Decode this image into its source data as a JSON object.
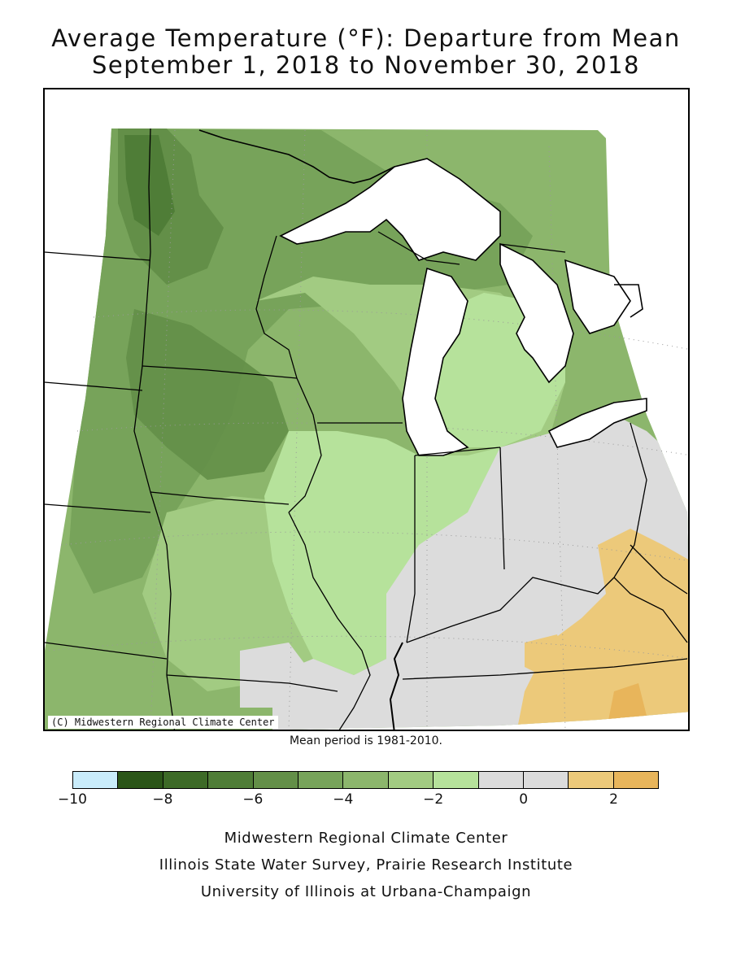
{
  "title": {
    "line1": "Average Temperature (°F): Departure from Mean",
    "line2": "September 1, 2018 to November 30, 2018"
  },
  "map": {
    "copyright": "(C) Midwestern Regional Climate Center",
    "region": "Midwest United States"
  },
  "mean_period": "Mean period is 1981-2010.",
  "legend": {
    "colors": [
      "#c9ecfb",
      "#2b5518",
      "#3d6a27",
      "#4f7d37",
      "#638f48",
      "#77a35a",
      "#8cb66c",
      "#a2cb82",
      "#b6e29b",
      "#dcdcdc",
      "#dcdcdc",
      "#ecc97a",
      "#e8b55b"
    ],
    "tick_labels": [
      "-10",
      "-8",
      "-6",
      "-4",
      "-2",
      "0",
      "2"
    ]
  },
  "credits": {
    "line1": "Midwestern Regional Climate Center",
    "line2": "Illinois State Water Survey, Prairie Research Institute",
    "line3": "University of Illinois at Urbana-Champaign"
  }
}
